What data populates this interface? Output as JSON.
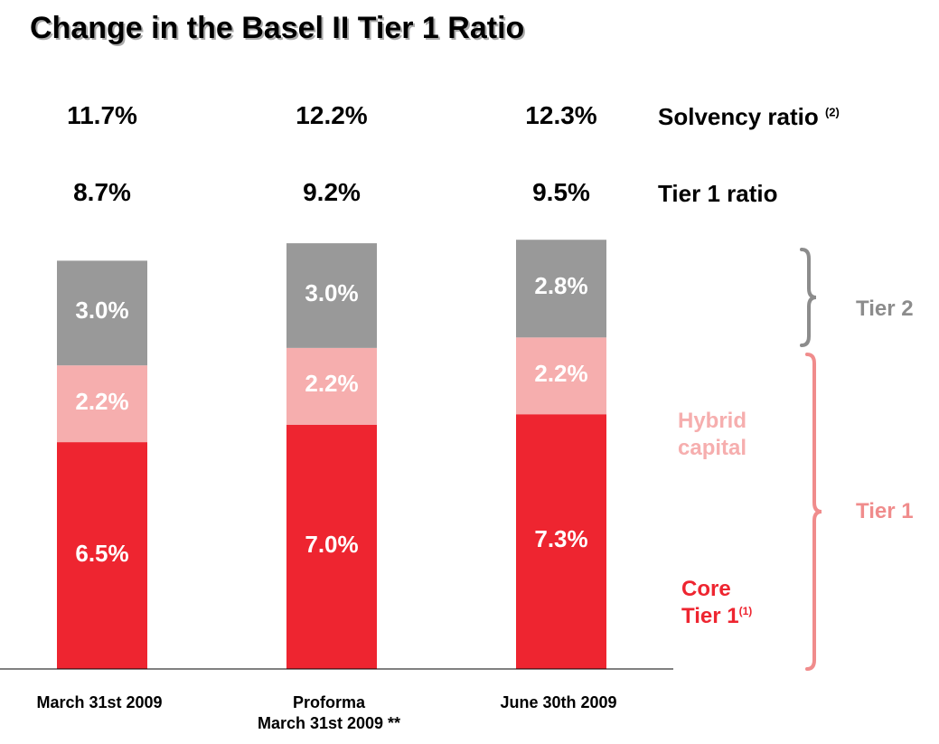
{
  "chart_data": {
    "type": "stacked_bar",
    "title": "Change in the Basel II Tier 1 Ratio",
    "categories": [
      "March 31st 2009",
      "Proforma\nMarch 31st 2009 **",
      "June 30th 2009"
    ],
    "series": [
      {
        "name": "Core\nTier 1",
        "note": "(1)",
        "color": "#ee2530",
        "values": [
          6.5,
          7.0,
          7.3
        ],
        "value_labels": [
          "6.5%",
          "7.0%",
          "7.3%"
        ]
      },
      {
        "name": "Hybrid\ncapital",
        "color": "#f6aeae",
        "values": [
          2.2,
          2.2,
          2.2
        ],
        "value_labels": [
          "2.2%",
          "2.2%",
          "2.2%"
        ]
      },
      {
        "name": "Tier 2",
        "color": "#999999",
        "values": [
          3.0,
          3.0,
          2.8
        ],
        "value_labels": [
          "3.0%",
          "3.0%",
          "2.8%"
        ]
      }
    ],
    "rows": [
      {
        "label": "Solvency ratio",
        "note": "(2)",
        "values": [
          "11.7%",
          "12.2%",
          "12.3%"
        ]
      },
      {
        "label": "Tier 1 ratio",
        "values": [
          "8.7%",
          "9.2%",
          "9.5%"
        ]
      }
    ],
    "groups": [
      {
        "label": "Tier 2",
        "color": "#8c8c8c"
      },
      {
        "label": "Tier 1",
        "color": "#f08c8c"
      }
    ]
  }
}
